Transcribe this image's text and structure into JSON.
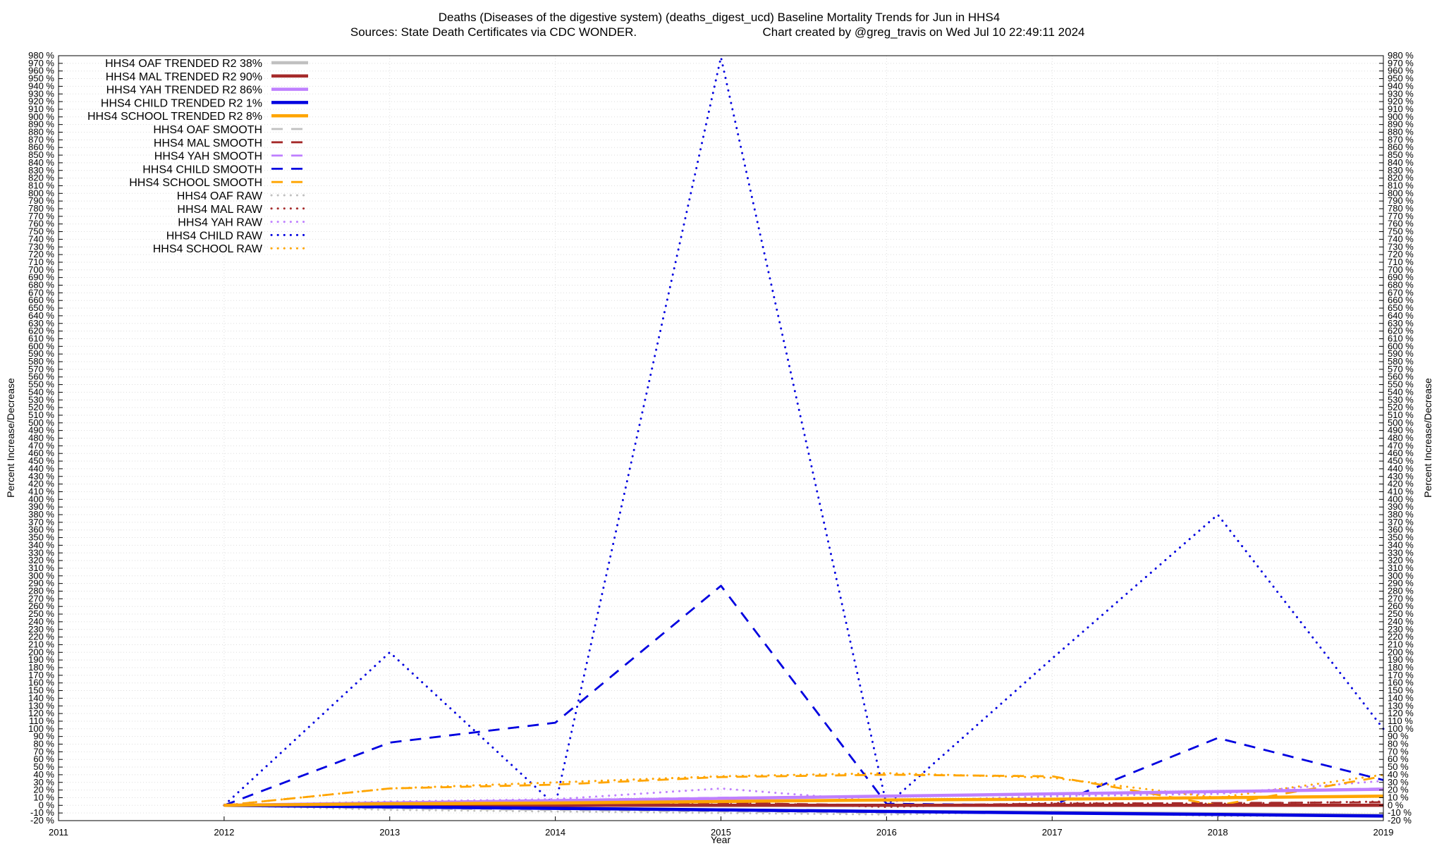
{
  "chart_data": {
    "type": "line",
    "title_line1": "Deaths (Diseases of the digestive system) (deaths_digest_ucd)  Baseline Mortality Trends for Jun in HHS4",
    "title_line2_left": "Sources: State Death Certificates via CDC WONDER.",
    "title_line2_right": "Chart created by @greg_travis on Wed Jul 10 22:49:11 2024",
    "xlabel": "Year",
    "ylabel_left": "Percent Increase/Decrease",
    "ylabel_right": "Percent Increase/Decrease",
    "xlim": [
      2011,
      2019
    ],
    "ylim": [
      -20,
      980
    ],
    "x_ticks": [
      2011,
      2012,
      2013,
      2014,
      2015,
      2016,
      2017,
      2018,
      2019
    ],
    "y_tick_step": 10,
    "y_tick_suffix": " %",
    "grid": true,
    "legend_position": "top-left",
    "series": [
      {
        "name": "HHS4 OAF TRENDED R2  38%",
        "style": "solid",
        "color": "#c0c0c0",
        "x": [
          2012,
          2013,
          2014,
          2015,
          2016,
          2017,
          2018,
          2019
        ],
        "values": [
          0,
          -2,
          -4,
          -6,
          -8,
          -9,
          -11,
          -13
        ]
      },
      {
        "name": "HHS4 MAL TRENDED R2  90%",
        "style": "solid",
        "color": "#a52a2a",
        "x": [
          2012,
          2013,
          2014,
          2015,
          2016,
          2017,
          2018,
          2019
        ],
        "values": [
          0,
          0,
          0,
          0,
          0,
          0,
          0,
          0
        ]
      },
      {
        "name": "HHS4 YAH TRENDED R2  86%",
        "style": "solid",
        "color": "#bf80ff",
        "x": [
          2012,
          2013,
          2014,
          2015,
          2016,
          2017,
          2018,
          2019
        ],
        "values": [
          0,
          3,
          6,
          9,
          12,
          15,
          18,
          21
        ]
      },
      {
        "name": "HHS4 CHILD TRENDED R2   1%",
        "style": "solid",
        "color": "#0000e0",
        "x": [
          2012,
          2013,
          2014,
          2015,
          2016,
          2017,
          2018,
          2019
        ],
        "values": [
          0,
          -2,
          -4,
          -6,
          -8,
          -10,
          -12,
          -14
        ]
      },
      {
        "name": "HHS4 SCHOOL TRENDED R2   8%",
        "style": "solid",
        "color": "#ffa500",
        "x": [
          2012,
          2013,
          2014,
          2015,
          2016,
          2017,
          2018,
          2019
        ],
        "values": [
          0,
          2,
          3,
          5,
          7,
          8,
          10,
          12
        ]
      },
      {
        "name": "HHS4 OAF SMOOTH",
        "style": "dash",
        "color": "#c0c0c0",
        "x": [
          2012,
          2013,
          2014,
          2015,
          2016,
          2017,
          2018,
          2019
        ],
        "values": [
          0,
          -4,
          -6,
          -8,
          -10,
          -8,
          -12,
          -13
        ]
      },
      {
        "name": "HHS4 MAL SMOOTH",
        "style": "dash",
        "color": "#a52a2a",
        "x": [
          2012,
          2013,
          2014,
          2015,
          2016,
          2017,
          2018,
          2019
        ],
        "values": [
          0,
          2,
          1,
          3,
          0,
          2,
          3,
          4
        ]
      },
      {
        "name": "HHS4 YAH SMOOTH",
        "style": "dash",
        "color": "#bf80ff",
        "x": [
          2012,
          2013,
          2014,
          2015,
          2016,
          2017,
          2018,
          2019
        ],
        "values": [
          0,
          4,
          7,
          10,
          12,
          15,
          18,
          22
        ]
      },
      {
        "name": "HHS4 CHILD SMOOTH",
        "style": "dash",
        "color": "#0000e0",
        "x": [
          2012,
          2013,
          2014,
          2015,
          2016,
          2017,
          2018,
          2019
        ],
        "values": [
          0,
          82,
          108,
          287,
          2,
          0,
          88,
          33
        ]
      },
      {
        "name": "HHS4 SCHOOL SMOOTH",
        "style": "dash",
        "color": "#ffa500",
        "x": [
          2012,
          2013,
          2014,
          2015,
          2016,
          2017,
          2018,
          2019
        ],
        "values": [
          0,
          22,
          27,
          37,
          40,
          38,
          0,
          38
        ]
      },
      {
        "name": "HHS4 OAF RAW",
        "style": "dot",
        "color": "#c0c0c0",
        "x": [
          2012,
          2013,
          2014,
          2015,
          2016,
          2017,
          2018,
          2019
        ],
        "values": [
          0,
          -6,
          -8,
          -10,
          -12,
          -8,
          -14,
          -13
        ]
      },
      {
        "name": "HHS4 MAL RAW",
        "style": "dot",
        "color": "#a52a2a",
        "x": [
          2012,
          2013,
          2014,
          2015,
          2016,
          2017,
          2018,
          2019
        ],
        "values": [
          0,
          3,
          0,
          4,
          -2,
          3,
          2,
          5
        ]
      },
      {
        "name": "HHS4 YAH RAW",
        "style": "dot",
        "color": "#bf80ff",
        "x": [
          2012,
          2013,
          2014,
          2015,
          2016,
          2017,
          2018,
          2019
        ],
        "values": [
          0,
          5,
          8,
          22,
          5,
          12,
          15,
          32
        ]
      },
      {
        "name": "HHS4 CHILD RAW",
        "style": "dot",
        "color": "#0000e0",
        "x": [
          2012,
          2013,
          2014,
          2015,
          2016,
          2017,
          2018,
          2019
        ],
        "values": [
          0,
          200,
          0,
          978,
          0,
          192,
          380,
          100
        ]
      },
      {
        "name": "HHS4 SCHOOL RAW",
        "style": "dot",
        "color": "#ffa500",
        "x": [
          2012,
          2013,
          2014,
          2015,
          2016,
          2017,
          2018,
          2019
        ],
        "values": [
          0,
          22,
          30,
          38,
          42,
          36,
          10,
          40
        ]
      }
    ]
  }
}
